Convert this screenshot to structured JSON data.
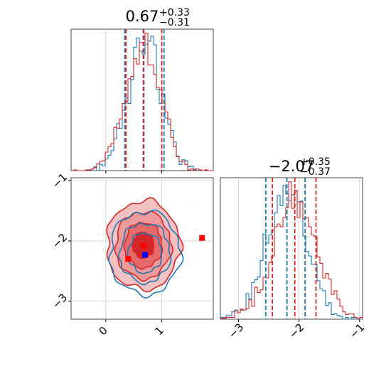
{
  "colors": {
    "red": "#d62728",
    "blue": "#1f77b4",
    "grid": "#cccccc"
  },
  "chart_data": {
    "type": "corner",
    "parameters": [
      {
        "title_value": "0.67",
        "title_plus": "+0.33",
        "title_minus": "−0.31",
        "range": [
          -0.62,
          1.92
        ],
        "ticks": [
          0,
          1
        ],
        "tick_labels": [
          "0",
          "1"
        ],
        "quantiles_red": [
          0.36,
          0.67,
          1.0
        ],
        "quantiles_blue": [
          0.34,
          0.68,
          1.04
        ]
      },
      {
        "title_value": "−2.07",
        "title_plus": "+0.35",
        "title_minus": "−0.37",
        "range": [
          -3.3,
          -0.95
        ],
        "ticks": [
          -3,
          -2,
          -1
        ],
        "tick_labels": [
          "−3",
          "−2",
          "−1"
        ],
        "quantiles_red": [
          -2.44,
          -2.07,
          -1.72
        ],
        "quantiles_blue": [
          -2.55,
          -2.2,
          -1.9
        ]
      }
    ],
    "series": [
      {
        "color": "red",
        "mean": [
          0.67,
          -2.07
        ],
        "sd": [
          0.32,
          0.36
        ]
      },
      {
        "color": "blue",
        "mean": [
          0.7,
          -2.2
        ],
        "sd": [
          0.3,
          0.33
        ]
      }
    ],
    "markers": [
      {
        "color": "red",
        "x": 0.4,
        "y": -2.3
      },
      {
        "color": "red",
        "x": 0.68,
        "y": -2.08
      },
      {
        "color": "red",
        "x": 1.72,
        "y": -1.95
      },
      {
        "color": "blue",
        "x": 0.7,
        "y": -2.23
      }
    ],
    "grid": true
  }
}
